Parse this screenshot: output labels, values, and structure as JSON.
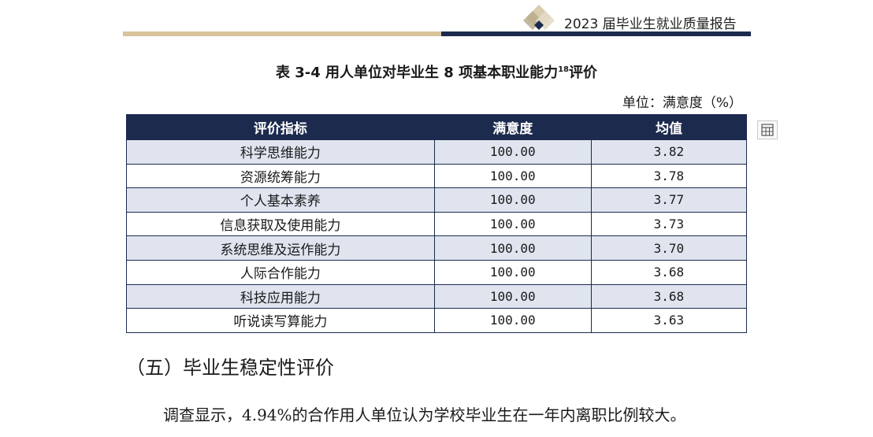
{
  "header": {
    "title": "2023 届毕业生就业质量报告"
  },
  "caption": {
    "text": "表 3-4   用人单位对毕业生 8 项基本职业能力",
    "footnote": "18",
    "suffix": "评价"
  },
  "unit_note": "单位：满意度（%）",
  "table": {
    "headers": [
      "评价指标",
      "满意度",
      "均值"
    ],
    "rows": [
      [
        "科学思维能力",
        "100.00",
        "3.82"
      ],
      [
        "资源统筹能力",
        "100.00",
        "3.78"
      ],
      [
        "个人基本素养",
        "100.00",
        "3.77"
      ],
      [
        "信息获取及使用能力",
        "100.00",
        "3.73"
      ],
      [
        "系统思维及运作能力",
        "100.00",
        "3.70"
      ],
      [
        "人际合作能力",
        "100.00",
        "3.68"
      ],
      [
        "科技应用能力",
        "100.00",
        "3.68"
      ],
      [
        "听说读写算能力",
        "100.00",
        "3.63"
      ]
    ]
  },
  "section_heading": "（五）毕业生稳定性评价",
  "paragraph": "调查显示，4.94%的合作用人单位认为学校毕业生在一年内离职比例较大。",
  "colors": {
    "navy": "#1c2a4e",
    "gold": "#d8c39a",
    "row_alt": "#dfe4ef"
  },
  "icons": {
    "header_logo": "diamond-logo",
    "table_tool": "table-icon"
  }
}
